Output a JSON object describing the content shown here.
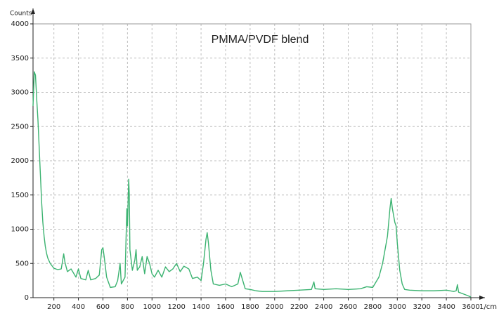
{
  "chart_data": {
    "type": "line",
    "title": "PMMA/PVDF blend",
    "y_label": "Counts",
    "x_label": "1/cm",
    "color": "#3cb371",
    "grid": true,
    "xlim": [
      30,
      3600
    ],
    "ylim": [
      0,
      4000
    ],
    "xticks": [
      200,
      400,
      600,
      800,
      1000,
      1200,
      1400,
      1600,
      1800,
      2000,
      2200,
      2400,
      2600,
      2800,
      3000,
      3200,
      3400,
      3600
    ],
    "yticks": [
      0,
      500,
      1000,
      1500,
      2000,
      2500,
      3000,
      3500,
      4000
    ],
    "x": [
      30,
      40,
      50,
      60,
      70,
      80,
      90,
      100,
      110,
      120,
      130,
      140,
      150,
      170,
      200,
      230,
      260,
      280,
      290,
      310,
      340,
      360,
      380,
      400,
      420,
      460,
      480,
      500,
      540,
      570,
      590,
      600,
      610,
      630,
      660,
      700,
      720,
      740,
      750,
      780,
      795,
      800,
      810,
      815,
      820,
      840,
      860,
      870,
      880,
      900,
      920,
      940,
      960,
      980,
      1000,
      1020,
      1050,
      1080,
      1110,
      1140,
      1170,
      1200,
      1230,
      1260,
      1300,
      1330,
      1370,
      1400,
      1420,
      1440,
      1450,
      1460,
      1480,
      1500,
      1550,
      1600,
      1650,
      1700,
      1720,
      1740,
      1760,
      1800,
      1850,
      1900,
      2000,
      2100,
      2200,
      2300,
      2320,
      2330,
      2400,
      2500,
      2600,
      2700,
      2750,
      2800,
      2850,
      2880,
      2900,
      2920,
      2940,
      2950,
      2960,
      2980,
      2990,
      3000,
      3020,
      3040,
      3060,
      3100,
      3200,
      3300,
      3400,
      3460,
      3480,
      3490,
      3500,
      3560,
      3600
    ],
    "values": [
      2800,
      3300,
      3250,
      2900,
      2600,
      2200,
      1800,
      1400,
      1100,
      900,
      750,
      650,
      580,
      500,
      430,
      410,
      420,
      640,
      520,
      380,
      420,
      360,
      300,
      420,
      280,
      260,
      400,
      260,
      280,
      330,
      700,
      730,
      600,
      300,
      150,
      160,
      250,
      500,
      200,
      300,
      1300,
      1050,
      1730,
      1500,
      700,
      400,
      550,
      700,
      400,
      450,
      600,
      350,
      600,
      500,
      350,
      300,
      400,
      300,
      450,
      380,
      420,
      500,
      380,
      460,
      420,
      280,
      300,
      250,
      500,
      850,
      950,
      800,
      400,
      200,
      180,
      200,
      160,
      200,
      370,
      250,
      130,
      120,
      100,
      90,
      90,
      100,
      110,
      120,
      230,
      130,
      120,
      130,
      120,
      130,
      160,
      150,
      300,
      500,
      700,
      900,
      1300,
      1450,
      1300,
      1100,
      1050,
      800,
      400,
      200,
      120,
      110,
      100,
      100,
      110,
      90,
      100,
      190,
      80,
      40,
      10
    ]
  }
}
